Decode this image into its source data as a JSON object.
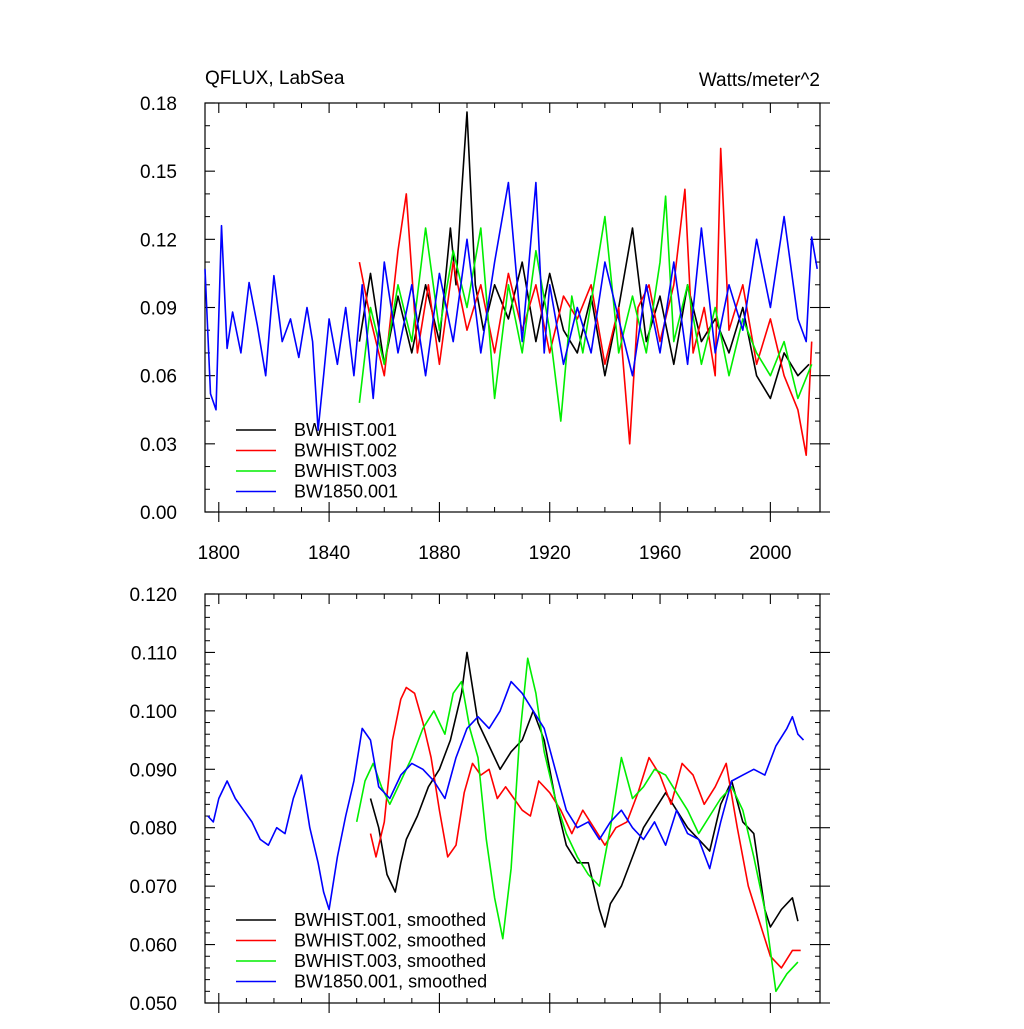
{
  "chart_data": [
    {
      "type": "line",
      "title": "QFLUX, LabSea",
      "units_label": "Watts/meter^2",
      "xlabel": "",
      "ylabel": "",
      "xlim": [
        1795,
        2018
      ],
      "ylim": [
        0.0,
        0.18
      ],
      "x_ticks": [
        1800,
        1840,
        1880,
        1920,
        1960,
        2000
      ],
      "x_tick_labels": [
        "1800",
        "1840",
        "1880",
        "1920",
        "1960",
        "2000"
      ],
      "y_ticks": [
        0.0,
        0.03,
        0.06,
        0.09,
        0.12,
        0.15,
        0.18
      ],
      "y_tick_labels": [
        "0.00",
        "0.03",
        "0.06",
        "0.09",
        "0.12",
        "0.15",
        "0.18"
      ],
      "legend_position": "bottom-left",
      "grid": false,
      "series": [
        {
          "name": "BWHIST.001",
          "color": "#000000",
          "x": [
            1851,
            1855,
            1860,
            1865,
            1870,
            1875,
            1880,
            1884,
            1886,
            1888,
            1890,
            1893,
            1896,
            1900,
            1905,
            1910,
            1915,
            1920,
            1925,
            1930,
            1935,
            1940,
            1945,
            1950,
            1955,
            1960,
            1965,
            1970,
            1975,
            1980,
            1985,
            1990,
            1995,
            2000,
            2005,
            2010,
            2014
          ],
          "y": [
            0.075,
            0.105,
            0.065,
            0.095,
            0.07,
            0.1,
            0.075,
            0.125,
            0.1,
            0.14,
            0.176,
            0.1,
            0.08,
            0.1,
            0.085,
            0.11,
            0.075,
            0.105,
            0.08,
            0.07,
            0.095,
            0.06,
            0.09,
            0.125,
            0.075,
            0.095,
            0.065,
            0.1,
            0.075,
            0.085,
            0.07,
            0.09,
            0.06,
            0.05,
            0.07,
            0.06,
            0.065
          ]
        },
        {
          "name": "BWHIST.002",
          "color": "#ff0000",
          "x": [
            1851,
            1855,
            1860,
            1865,
            1868,
            1872,
            1876,
            1880,
            1885,
            1890,
            1895,
            1900,
            1905,
            1910,
            1915,
            1920,
            1925,
            1930,
            1935,
            1940,
            1945,
            1949,
            1952,
            1956,
            1960,
            1965,
            1969,
            1972,
            1976,
            1980,
            1982,
            1985,
            1990,
            1995,
            2000,
            2005,
            2010,
            2013,
            2015
          ],
          "y": [
            0.11,
            0.085,
            0.06,
            0.115,
            0.14,
            0.07,
            0.1,
            0.065,
            0.11,
            0.08,
            0.1,
            0.07,
            0.105,
            0.08,
            0.1,
            0.07,
            0.095,
            0.085,
            0.1,
            0.065,
            0.09,
            0.03,
            0.09,
            0.1,
            0.075,
            0.1,
            0.142,
            0.07,
            0.09,
            0.06,
            0.16,
            0.08,
            0.1,
            0.065,
            0.085,
            0.06,
            0.045,
            0.025,
            0.075
          ]
        },
        {
          "name": "BWHIST.003",
          "color": "#00ee00",
          "x": [
            1851,
            1855,
            1860,
            1865,
            1870,
            1875,
            1880,
            1885,
            1890,
            1895,
            1900,
            1905,
            1910,
            1915,
            1920,
            1924,
            1928,
            1932,
            1936,
            1940,
            1945,
            1950,
            1955,
            1960,
            1962,
            1965,
            1970,
            1975,
            1980,
            1985,
            1990,
            1995,
            2000,
            2005,
            2010,
            2015
          ],
          "y": [
            0.048,
            0.09,
            0.065,
            0.1,
            0.075,
            0.125,
            0.08,
            0.115,
            0.09,
            0.125,
            0.05,
            0.1,
            0.07,
            0.115,
            0.08,
            0.04,
            0.095,
            0.07,
            0.1,
            0.13,
            0.07,
            0.095,
            0.07,
            0.11,
            0.139,
            0.075,
            0.1,
            0.065,
            0.09,
            0.06,
            0.085,
            0.07,
            0.06,
            0.075,
            0.05,
            0.065
          ]
        },
        {
          "name": "BW1850.001",
          "color": "#0000ff",
          "x": [
            1795,
            1797,
            1799,
            1801,
            1803,
            1805,
            1808,
            1811,
            1814,
            1817,
            1820,
            1823,
            1826,
            1829,
            1832,
            1834,
            1836,
            1838,
            1840,
            1843,
            1846,
            1849,
            1852,
            1856,
            1860,
            1865,
            1870,
            1875,
            1880,
            1885,
            1890,
            1895,
            1900,
            1905,
            1910,
            1915,
            1918,
            1920,
            1925,
            1930,
            1935,
            1940,
            1945,
            1950,
            1955,
            1960,
            1965,
            1970,
            1975,
            1980,
            1985,
            1990,
            1995,
            2000,
            2005,
            2010,
            2013,
            2015,
            2017
          ],
          "y": [
            0.107,
            0.052,
            0.045,
            0.126,
            0.072,
            0.088,
            0.07,
            0.101,
            0.082,
            0.06,
            0.104,
            0.075,
            0.085,
            0.068,
            0.09,
            0.075,
            0.036,
            0.06,
            0.085,
            0.065,
            0.09,
            0.06,
            0.1,
            0.05,
            0.11,
            0.07,
            0.1,
            0.06,
            0.105,
            0.075,
            0.12,
            0.07,
            0.11,
            0.145,
            0.075,
            0.145,
            0.07,
            0.1,
            0.065,
            0.09,
            0.07,
            0.11,
            0.085,
            0.06,
            0.1,
            0.07,
            0.11,
            0.065,
            0.125,
            0.07,
            0.1,
            0.08,
            0.12,
            0.09,
            0.13,
            0.085,
            0.075,
            0.121,
            0.107
          ]
        }
      ]
    },
    {
      "type": "line",
      "title": "",
      "xlabel": "",
      "ylabel": "",
      "xlim": [
        1795,
        2018
      ],
      "ylim": [
        0.05,
        0.12
      ],
      "x_ticks": [
        1800,
        1840,
        1880,
        1920,
        1960,
        2000
      ],
      "x_tick_labels": [],
      "y_ticks": [
        0.05,
        0.06,
        0.07,
        0.08,
        0.09,
        0.1,
        0.11,
        0.12
      ],
      "y_tick_labels": [
        "0.050",
        "0.060",
        "0.070",
        "0.080",
        "0.090",
        "0.100",
        "0.110",
        "0.120"
      ],
      "legend_position": "bottom-left",
      "grid": false,
      "series": [
        {
          "name": "BWHIST.001, smoothed",
          "color": "#000000",
          "x": [
            1855,
            1858,
            1861,
            1864,
            1866,
            1868,
            1872,
            1876,
            1880,
            1884,
            1888,
            1890,
            1892,
            1894,
            1898,
            1902,
            1906,
            1910,
            1914,
            1918,
            1922,
            1926,
            1930,
            1934,
            1938,
            1940,
            1942,
            1946,
            1950,
            1954,
            1958,
            1962,
            1966,
            1970,
            1974,
            1978,
            1982,
            1986,
            1990,
            1994,
            1998,
            2000,
            2004,
            2008,
            2010
          ],
          "y": [
            0.085,
            0.08,
            0.072,
            0.069,
            0.074,
            0.078,
            0.082,
            0.087,
            0.09,
            0.095,
            0.103,
            0.11,
            0.104,
            0.098,
            0.094,
            0.09,
            0.093,
            0.095,
            0.1,
            0.095,
            0.085,
            0.077,
            0.074,
            0.074,
            0.066,
            0.063,
            0.067,
            0.07,
            0.075,
            0.08,
            0.083,
            0.086,
            0.083,
            0.08,
            0.078,
            0.076,
            0.084,
            0.088,
            0.081,
            0.079,
            0.066,
            0.063,
            0.066,
            0.068,
            0.064
          ]
        },
        {
          "name": "BWHIST.002, smoothed",
          "color": "#ff0000",
          "x": [
            1855,
            1857,
            1860,
            1863,
            1866,
            1868,
            1871,
            1874,
            1877,
            1880,
            1883,
            1886,
            1889,
            1892,
            1895,
            1898,
            1901,
            1904,
            1907,
            1910,
            1913,
            1916,
            1920,
            1924,
            1928,
            1932,
            1936,
            1940,
            1944,
            1948,
            1952,
            1956,
            1960,
            1964,
            1968,
            1972,
            1976,
            1980,
            1984,
            1988,
            1992,
            1996,
            2000,
            2004,
            2008,
            2011
          ],
          "y": [
            0.079,
            0.075,
            0.081,
            0.095,
            0.102,
            0.104,
            0.103,
            0.098,
            0.092,
            0.083,
            0.075,
            0.077,
            0.086,
            0.091,
            0.089,
            0.09,
            0.085,
            0.087,
            0.085,
            0.083,
            0.082,
            0.088,
            0.086,
            0.083,
            0.079,
            0.083,
            0.08,
            0.077,
            0.08,
            0.081,
            0.086,
            0.092,
            0.089,
            0.084,
            0.091,
            0.089,
            0.084,
            0.087,
            0.091,
            0.08,
            0.07,
            0.064,
            0.058,
            0.056,
            0.059,
            0.059
          ]
        },
        {
          "name": "BWHIST.003, smoothed",
          "color": "#00ee00",
          "x": [
            1850,
            1853,
            1856,
            1859,
            1862,
            1866,
            1870,
            1874,
            1878,
            1882,
            1885,
            1888,
            1891,
            1894,
            1897,
            1900,
            1903,
            1906,
            1909,
            1912,
            1915,
            1918,
            1922,
            1926,
            1930,
            1934,
            1938,
            1942,
            1946,
            1950,
            1954,
            1958,
            1962,
            1966,
            1970,
            1974,
            1978,
            1982,
            1986,
            1990,
            1994,
            1998,
            2002,
            2006,
            2010
          ],
          "y": [
            0.081,
            0.088,
            0.091,
            0.087,
            0.084,
            0.088,
            0.092,
            0.097,
            0.1,
            0.096,
            0.103,
            0.105,
            0.097,
            0.092,
            0.078,
            0.068,
            0.061,
            0.073,
            0.095,
            0.109,
            0.103,
            0.093,
            0.085,
            0.079,
            0.075,
            0.072,
            0.07,
            0.08,
            0.092,
            0.085,
            0.087,
            0.09,
            0.089,
            0.086,
            0.083,
            0.079,
            0.082,
            0.085,
            0.087,
            0.083,
            0.075,
            0.066,
            0.052,
            0.055,
            0.057
          ]
        },
        {
          "name": "BW1850.001, smoothed",
          "color": "#0000ff",
          "x": [
            1796,
            1798,
            1800,
            1803,
            1806,
            1809,
            1812,
            1815,
            1818,
            1821,
            1824,
            1827,
            1830,
            1833,
            1836,
            1838,
            1840,
            1843,
            1846,
            1849,
            1852,
            1855,
            1858,
            1862,
            1866,
            1870,
            1874,
            1878,
            1882,
            1886,
            1890,
            1894,
            1898,
            1902,
            1906,
            1910,
            1914,
            1918,
            1922,
            1926,
            1930,
            1934,
            1938,
            1942,
            1946,
            1950,
            1954,
            1958,
            1962,
            1966,
            1970,
            1974,
            1978,
            1982,
            1986,
            1990,
            1994,
            1998,
            2002,
            2006,
            2008,
            2010,
            2012
          ],
          "y": [
            0.082,
            0.081,
            0.085,
            0.088,
            0.085,
            0.083,
            0.081,
            0.078,
            0.077,
            0.08,
            0.079,
            0.085,
            0.089,
            0.08,
            0.074,
            0.069,
            0.066,
            0.075,
            0.082,
            0.088,
            0.097,
            0.095,
            0.087,
            0.085,
            0.089,
            0.091,
            0.09,
            0.088,
            0.085,
            0.092,
            0.097,
            0.099,
            0.097,
            0.1,
            0.105,
            0.103,
            0.1,
            0.097,
            0.09,
            0.083,
            0.08,
            0.081,
            0.078,
            0.081,
            0.083,
            0.08,
            0.078,
            0.081,
            0.077,
            0.083,
            0.079,
            0.078,
            0.073,
            0.081,
            0.088,
            0.089,
            0.09,
            0.089,
            0.094,
            0.097,
            0.099,
            0.096,
            0.095
          ]
        }
      ]
    }
  ]
}
